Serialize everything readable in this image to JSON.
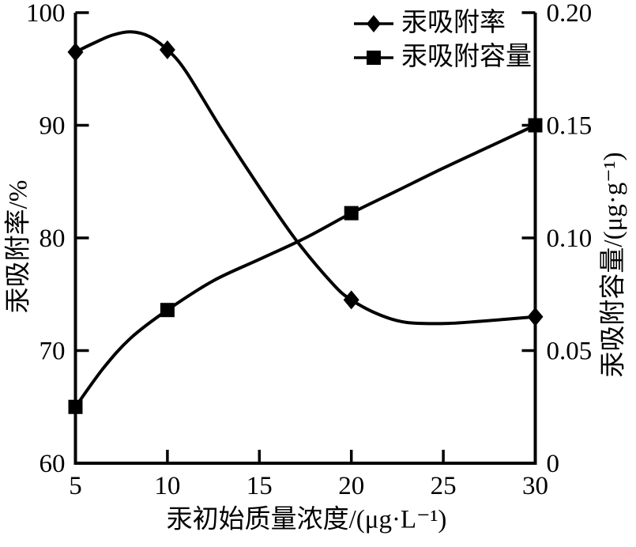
{
  "figure": {
    "background": "#ffffff",
    "ink_color": "#000000"
  },
  "chart_data": {
    "type": "line",
    "dual_y_axis": true,
    "grid": false,
    "legend_position": "upper-right-inside-no-frame",
    "xlabel": "汞初始质量浓度/(μg·L⁻¹)",
    "ylabel_left": "汞吸附率/%",
    "ylabel_right": "汞吸附容量/(μg·g⁻¹)",
    "xlim": [
      5,
      30
    ],
    "ylim_left": [
      60,
      100
    ],
    "ylim_right": [
      0,
      0.2
    ],
    "x_ticks": [
      {
        "label": "5",
        "value": 5
      },
      {
        "label": "10",
        "value": 10
      },
      {
        "label": "15",
        "value": 15
      },
      {
        "label": "20",
        "value": 20
      },
      {
        "label": "25",
        "value": 25
      },
      {
        "label": "30",
        "value": 30
      }
    ],
    "left_ticks": [
      {
        "label": "100",
        "value": 100
      },
      {
        "label": "90",
        "value": 90
      },
      {
        "label": "80",
        "value": 80
      },
      {
        "label": "70",
        "value": 70
      },
      {
        "label": "60",
        "value": 60
      }
    ],
    "right_ticks": [
      {
        "label": "0.20",
        "value": 0.2
      },
      {
        "label": "0.15",
        "value": 0.15
      },
      {
        "label": "0.10",
        "value": 0.1
      },
      {
        "label": "0.05",
        "value": 0.05
      },
      {
        "label": "0",
        "value": 0
      }
    ],
    "series": [
      {
        "name": "汞吸附率",
        "axis": "left",
        "marker": "diamond",
        "color": "#000000",
        "x": [
          5,
          10,
          20,
          30
        ],
        "y": [
          96.5,
          96.7,
          74.5,
          73.0
        ],
        "curve_points": [
          [
            5,
            96.5
          ],
          [
            6,
            97.3
          ],
          [
            7,
            98.0
          ],
          [
            8,
            98.3
          ],
          [
            9,
            97.9
          ],
          [
            10,
            96.7
          ],
          [
            11,
            94.8
          ],
          [
            13,
            89.5
          ],
          [
            15,
            84.5
          ],
          [
            17,
            79.8
          ],
          [
            19,
            75.9
          ],
          [
            20,
            74.5
          ],
          [
            21.5,
            73.2
          ],
          [
            23,
            72.5
          ],
          [
            25,
            72.4
          ],
          [
            27,
            72.6
          ],
          [
            30,
            73.0
          ]
        ]
      },
      {
        "name": "汞吸附容量",
        "axis": "right",
        "marker": "square",
        "color": "#000000",
        "x": [
          5,
          10,
          20,
          30
        ],
        "y": [
          0.025,
          0.068,
          0.111,
          0.15
        ],
        "curve_points": [
          [
            5,
            0.025
          ],
          [
            6.5,
            0.042
          ],
          [
            8,
            0.0555
          ],
          [
            10,
            0.068
          ],
          [
            12.5,
            0.081
          ],
          [
            15,
            0.0905
          ],
          [
            17.5,
            0.1
          ],
          [
            20,
            0.111
          ],
          [
            22.5,
            0.121
          ],
          [
            25,
            0.131
          ],
          [
            27.5,
            0.1405
          ],
          [
            30,
            0.15
          ]
        ]
      }
    ]
  }
}
